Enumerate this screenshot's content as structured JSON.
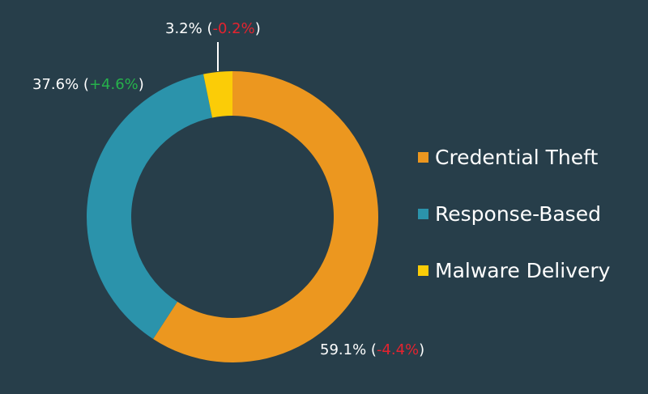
{
  "chart_data": {
    "type": "pie",
    "donut": true,
    "categories": [
      "Credential Theft",
      "Response-Based",
      "Malware Delivery"
    ],
    "values": [
      59.1,
      37.6,
      3.2
    ],
    "value_labels": [
      "59.1%",
      "37.6%",
      "3.2%"
    ],
    "changes": [
      "-4.4%",
      "+4.6%",
      "-0.2%"
    ],
    "colors": [
      "#ec971f",
      "#2b93ab",
      "#fbcc07"
    ],
    "change_colors": {
      "positive": "#26b24b",
      "negative": "#e5232f"
    },
    "start": "12 o'clock",
    "direction": "clockwise",
    "legend_position": "right",
    "title": ""
  }
}
